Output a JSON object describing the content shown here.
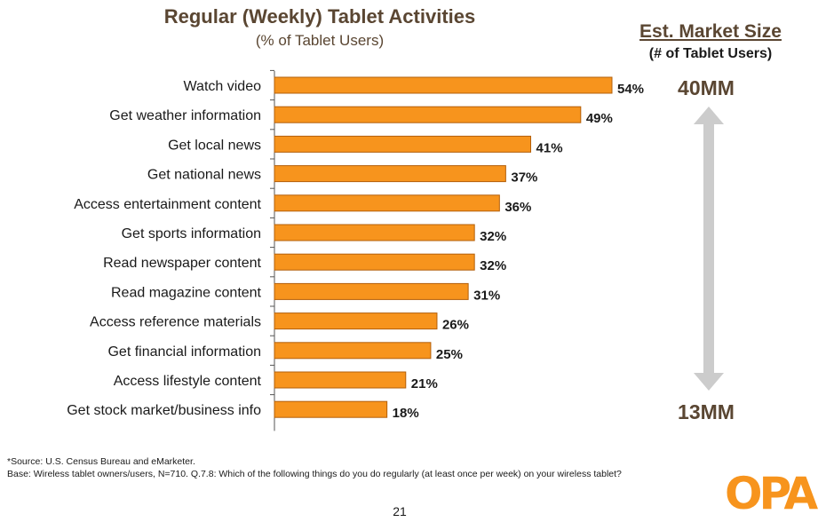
{
  "header": {
    "title": "Regular (Weekly) Tablet Activities",
    "subtitle": "(% of Tablet Users)"
  },
  "market": {
    "title": "Est. Market Size",
    "subtitle": "(# of Tablet Users)",
    "high": "40MM",
    "low": "13MM"
  },
  "footer": {
    "source": "*Source: U.S. Census Bureau and eMarketer.",
    "base": "Base:   Wireless tablet owners/users, N=710.  Q.7.8:  Which of the following things do you do regularly (at least once per week) on your wireless tablet?",
    "page": "21",
    "logo": "OPA"
  },
  "colors": {
    "bar": "#f7941d",
    "bar_stroke": "#b35f0a",
    "arrow": "#cccccc",
    "title": "#5a4632"
  },
  "chart_data": {
    "type": "bar",
    "orientation": "horizontal",
    "categories": [
      "Watch video",
      "Get weather information",
      "Get local news",
      "Get national news",
      "Access entertainment content",
      "Get sports information",
      "Read newspaper content",
      "Read magazine content",
      "Access reference materials",
      "Get financial information",
      "Access lifestyle content",
      "Get stock market/business info"
    ],
    "values": [
      54,
      49,
      41,
      37,
      36,
      32,
      32,
      31,
      26,
      25,
      21,
      18
    ],
    "labels": [
      "54%",
      "49%",
      "41%",
      "37%",
      "36%",
      "32%",
      "32%",
      "31%",
      "26%",
      "25%",
      "21%",
      "18%"
    ],
    "xlim": [
      0,
      54
    ],
    "grid": false
  }
}
